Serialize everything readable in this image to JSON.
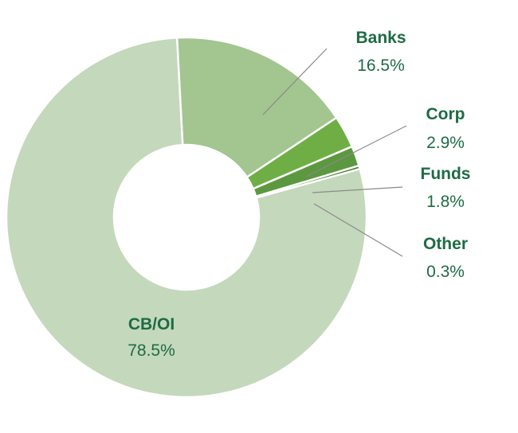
{
  "chart_data": {
    "type": "pie",
    "donut": true,
    "categories": [
      "Banks",
      "Corp",
      "Funds",
      "Other",
      "CB/OI"
    ],
    "values": [
      16.5,
      2.9,
      1.8,
      0.3,
      78.5
    ],
    "value_labels": [
      "16.5%",
      "2.9%",
      "1.8%",
      "0.3%",
      "78.5%"
    ],
    "colors": [
      "#a3c590",
      "#6fae45",
      "#5c9840",
      "#4a7c35",
      "#c4d8bc"
    ],
    "label_color": "#1e6b45",
    "label_bold": [
      true,
      true,
      true,
      false,
      true
    ],
    "legend": "none"
  }
}
